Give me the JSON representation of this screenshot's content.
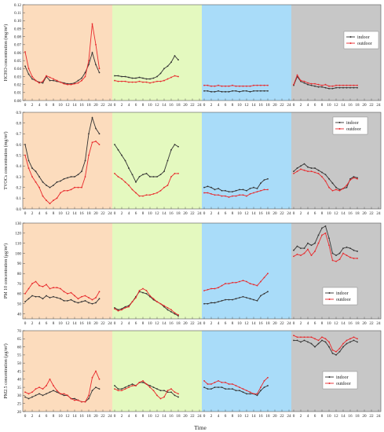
{
  "x_title": "Time",
  "legend_labels": [
    "indoor",
    "outdoor"
  ],
  "colors": {
    "indoor": "#333333",
    "outdoor": "#e8292c",
    "bands": [
      "#fcdcbd",
      "#e4f9bf",
      "#a9dcf9",
      "#c7c7c7"
    ]
  },
  "chart_data": [
    {
      "type": "line",
      "ylabel": "HCHO concentration (mg/m³)",
      "ylim": [
        0,
        0.12
      ],
      "yticks": [
        "0.00",
        "0.01",
        "0.02",
        "0.03",
        "0.04",
        "0.05",
        "0.06",
        "0.07",
        "0.08",
        "0.09",
        "0.10",
        "0.11",
        "0.12"
      ],
      "xticks_by_panel": [
        [
          "0",
          "2",
          "4",
          "6",
          "8",
          "10",
          "12",
          "14",
          "16",
          "18",
          "20",
          "22",
          "24"
        ],
        [
          "0",
          "2",
          "4",
          "6",
          "8",
          "10",
          "12",
          "14",
          "16",
          "18",
          "20",
          "22",
          "24"
        ],
        [
          "0",
          "2",
          "4",
          "6",
          "8",
          "10",
          "12",
          "14",
          "16",
          "18",
          "20",
          "22",
          "24"
        ],
        [
          "0",
          "2",
          "4",
          "6",
          "8",
          "10",
          "12",
          "14",
          "16",
          "18",
          "20",
          "22",
          "24"
        ]
      ],
      "legend_position": "right",
      "series": [
        {
          "name": "indoor",
          "panels": [
            [
              0.043,
              0.033,
              0.027,
              0.025,
              0.023,
              0.022,
              0.03,
              0.025,
              0.025,
              0.024,
              0.023,
              0.022,
              0.021,
              0.021,
              0.022,
              0.025,
              0.028,
              0.035,
              0.045,
              0.06,
              0.045,
              0.035
            ],
            [
              0.031,
              0.031,
              0.03,
              0.03,
              0.029,
              0.028,
              0.028,
              0.029,
              0.028,
              0.027,
              0.027,
              0.028,
              0.03,
              0.034,
              0.04,
              0.043,
              0.048,
              0.056,
              0.051
            ],
            [
              0.012,
              0.012,
              0.011,
              0.011,
              0.012,
              0.011,
              0.011,
              0.011,
              0.012,
              0.012,
              0.011,
              0.012,
              0.012,
              0.011,
              0.012,
              0.012,
              0.012,
              0.012,
              0.012
            ],
            [
              0.019,
              0.03,
              0.024,
              0.022,
              0.02,
              0.019,
              0.018,
              0.017,
              0.017,
              0.016,
              0.015,
              0.015,
              0.016,
              0.016,
              0.016,
              0.016,
              0.016,
              0.016,
              0.016
            ]
          ]
        },
        {
          "name": "outdoor",
          "panels": [
            [
              0.061,
              0.04,
              0.03,
              0.025,
              0.022,
              0.024,
              0.031,
              0.029,
              0.027,
              0.025,
              0.023,
              0.021,
              0.02,
              0.02,
              0.021,
              0.022,
              0.025,
              0.03,
              0.05,
              0.096,
              0.07,
              0.04
            ],
            [
              0.025,
              0.024,
              0.024,
              0.024,
              0.023,
              0.023,
              0.023,
              0.024,
              0.023,
              0.023,
              0.022,
              0.023,
              0.024,
              0.024,
              0.025,
              0.027,
              0.029,
              0.031,
              0.03
            ],
            [
              0.019,
              0.019,
              0.018,
              0.018,
              0.019,
              0.018,
              0.018,
              0.018,
              0.019,
              0.018,
              0.018,
              0.018,
              0.018,
              0.018,
              0.019,
              0.019,
              0.019,
              0.019,
              0.019
            ],
            [
              0.02,
              0.032,
              0.025,
              0.024,
              0.022,
              0.021,
              0.021,
              0.02,
              0.019,
              0.02,
              0.018,
              0.018,
              0.019,
              0.019,
              0.019,
              0.019,
              0.019,
              0.019,
              0.019
            ]
          ]
        }
      ]
    },
    {
      "type": "line",
      "ylabel": "TVOCs concentration (mg/m³)",
      "ylim": [
        0,
        0.9
      ],
      "yticks": [
        "0.0",
        "0.1",
        "0.2",
        "0.3",
        "0.4",
        "0.5",
        "0.6",
        "0.7",
        "0.8",
        "0.9"
      ],
      "xticks_by_panel": [
        [
          "0",
          "2",
          "4",
          "6",
          "8",
          "10",
          "12",
          "14",
          "16",
          "18",
          "20",
          "22",
          "24"
        ],
        [
          "0",
          "2",
          "4",
          "6",
          "8",
          "10",
          "12",
          "14",
          "16",
          "18",
          "20",
          "22",
          "24"
        ],
        [
          "0",
          "2",
          "4",
          "6",
          "8",
          "10",
          "12",
          "14",
          "16",
          "18",
          "20",
          "22",
          "24"
        ],
        [
          "0",
          "2",
          "4",
          "6",
          "8",
          "10",
          "12",
          "14",
          "16",
          "18",
          "20",
          "22",
          "24"
        ]
      ],
      "legend_position": "right",
      "series": [
        {
          "name": "indoor",
          "panels": [
            [
              0.6,
              0.45,
              0.38,
              0.35,
              0.3,
              0.25,
              0.22,
              0.2,
              0.22,
              0.25,
              0.26,
              0.28,
              0.29,
              0.3,
              0.3,
              0.32,
              0.35,
              0.45,
              0.7,
              0.85,
              0.75,
              0.7
            ],
            [
              0.6,
              0.55,
              0.5,
              0.45,
              0.38,
              0.32,
              0.25,
              0.3,
              0.32,
              0.33,
              0.3,
              0.3,
              0.3,
              0.32,
              0.35,
              0.45,
              0.55,
              0.6,
              0.58
            ],
            [
              0.2,
              0.21,
              0.2,
              0.18,
              0.19,
              0.17,
              0.17,
              0.16,
              0.16,
              0.17,
              0.18,
              0.18,
              0.17,
              0.19,
              0.2,
              0.19,
              0.24,
              0.27,
              0.28
            ],
            [
              0.35,
              0.38,
              0.4,
              0.42,
              0.39,
              0.38,
              0.38,
              0.36,
              0.34,
              0.32,
              0.28,
              0.24,
              0.2,
              0.18,
              0.19,
              0.2,
              0.28,
              0.3,
              0.29
            ]
          ]
        },
        {
          "name": "outdoor",
          "panels": [
            [
              0.5,
              0.38,
              0.3,
              0.25,
              0.2,
              0.12,
              0.08,
              0.05,
              0.08,
              0.1,
              0.15,
              0.17,
              0.17,
              0.18,
              0.2,
              0.2,
              0.2,
              0.3,
              0.5,
              0.62,
              0.63,
              0.6
            ],
            [
              0.33,
              0.3,
              0.28,
              0.25,
              0.22,
              0.18,
              0.15,
              0.12,
              0.12,
              0.13,
              0.13,
              0.14,
              0.15,
              0.17,
              0.2,
              0.22,
              0.3,
              0.33,
              0.33
            ],
            [
              0.15,
              0.15,
              0.14,
              0.13,
              0.13,
              0.12,
              0.12,
              0.11,
              0.12,
              0.12,
              0.13,
              0.13,
              0.12,
              0.14,
              0.15,
              0.16,
              0.17,
              0.18,
              0.18
            ],
            [
              0.33,
              0.35,
              0.37,
              0.36,
              0.35,
              0.35,
              0.34,
              0.33,
              0.3,
              0.26,
              0.2,
              0.17,
              0.18,
              0.17,
              0.19,
              0.22,
              0.27,
              0.29,
              0.28
            ]
          ]
        }
      ]
    },
    {
      "type": "line",
      "ylabel": "PM 10  concentration (μg/m³)",
      "ylim": [
        35,
        130
      ],
      "yticks": [
        "40",
        "50",
        "60",
        "70",
        "80",
        "90",
        "100",
        "110",
        "120",
        "130"
      ],
      "xticks_by_panel": [
        [
          "0",
          "2",
          "4",
          "6",
          "8",
          "10",
          "12",
          "14",
          "16",
          "18",
          "20",
          "22",
          "24"
        ],
        [
          "0",
          "2",
          "4",
          "6",
          "8",
          "10",
          "12",
          "14",
          "16",
          "18",
          "20",
          "22",
          "24"
        ],
        [
          "0",
          "2",
          "4",
          "6",
          "8",
          "10",
          "12",
          "14",
          "16",
          "18",
          "20",
          "22",
          "24"
        ],
        [
          "0",
          "2",
          "4",
          "6",
          "8",
          "10",
          "12",
          "14",
          "16",
          "18",
          "20",
          "22",
          "24"
        ]
      ],
      "legend_position": "right",
      "series": [
        {
          "name": "indoor",
          "panels": [
            [
              52,
              55,
              58,
              57,
              57,
              55,
              58,
              56,
              57,
              56,
              55,
              53,
              53,
              54,
              52,
              51,
              52,
              53,
              51,
              50,
              51,
              55
            ],
            [
              46,
              44,
              45,
              47,
              48,
              52,
              57,
              62,
              61,
              60,
              57,
              54,
              52,
              50,
              47,
              44,
              42,
              40,
              38
            ],
            [
              50,
              50,
              51,
              51,
              52,
              53,
              54,
              54,
              54,
              55,
              56,
              57,
              56,
              55,
              54,
              53,
              58,
              60,
              62
            ],
            [
              103,
              107,
              105,
              105,
              110,
              108,
              110,
              118,
              125,
              127,
              115,
              100,
              98,
              100,
              105,
              106,
              105,
              103,
              102
            ]
          ]
        },
        {
          "name": "outdoor",
          "panels": [
            [
              60,
              65,
              70,
              72,
              68,
              67,
              69,
              65,
              66,
              66,
              65,
              62,
              60,
              61,
              58,
              55,
              57,
              58,
              56,
              54,
              56,
              62
            ],
            [
              45,
              43,
              44,
              46,
              47,
              52,
              56,
              63,
              65,
              63,
              58,
              55,
              52,
              50,
              48,
              46,
              44,
              41,
              39
            ],
            [
              63,
              64,
              65,
              65,
              66,
              68,
              70,
              70,
              71,
              71,
              72,
              73,
              72,
              70,
              69,
              68,
              72,
              76,
              80
            ],
            [
              97,
              99,
              98,
              100,
              104,
              98,
              102,
              110,
              118,
              120,
              108,
              93,
              92,
              94,
              100,
              98,
              96,
              95,
              95
            ]
          ]
        }
      ]
    },
    {
      "type": "line",
      "ylabel": "PM2.5 concentration (μg/m³)",
      "ylim": [
        20,
        70
      ],
      "yticks": [
        "20",
        "25",
        "30",
        "35",
        "40",
        "45",
        "50",
        "55",
        "60",
        "65",
        "70"
      ],
      "xticks_by_panel": [
        [
          "0",
          "2",
          "4",
          "6",
          "8",
          "10",
          "12",
          "14",
          "16",
          "18",
          "20",
          "22",
          "24"
        ],
        [
          "0",
          "2",
          "4",
          "6",
          "8",
          "10",
          "12",
          "14",
          "16",
          "18",
          "20",
          "22",
          "24"
        ],
        [
          "0",
          "2",
          "4",
          "6",
          "8",
          "10",
          "12",
          "14",
          "16",
          "18",
          "20",
          "22",
          "24"
        ],
        [
          "0",
          "2",
          "4",
          "6",
          "8",
          "10",
          "12",
          "14",
          "16",
          "18",
          "20",
          "22",
          "24"
        ]
      ],
      "legend_position": "right",
      "series": [
        {
          "name": "indoor",
          "panels": [
            [
              29,
              28,
              29,
              30,
              31,
              30,
              31,
              32,
              33,
              32,
              31,
              30,
              30,
              28,
              28,
              27,
              26,
              26,
              28,
              33,
              35,
              34
            ],
            [
              36,
              34,
              34,
              35,
              36,
              37,
              36,
              38,
              38,
              37,
              36,
              35,
              34,
              33,
              33,
              32,
              32,
              30,
              29
            ],
            [
              35,
              34,
              34,
              35,
              35,
              35,
              34,
              34,
              34,
              33,
              33,
              32,
              31,
              31,
              31,
              30,
              33,
              35,
              36
            ],
            [
              64,
              64,
              63,
              64,
              63,
              62,
              60,
              62,
              64,
              63,
              60,
              56,
              55,
              57,
              60,
              62,
              63,
              64,
              63
            ]
          ]
        },
        {
          "name": "outdoor",
          "panels": [
            [
              32,
              31,
              32,
              34,
              35,
              34,
              36,
              40,
              36,
              33,
              31,
              31,
              30,
              28,
              27,
              27,
              26,
              26,
              30,
              41,
              45,
              40
            ],
            [
              34,
              33,
              33,
              34,
              35,
              36,
              36,
              38,
              39,
              37,
              35,
              33,
              30,
              28,
              29,
              33,
              34,
              32,
              31
            ],
            [
              39,
              37,
              37,
              38,
              39,
              38,
              38,
              37,
              37,
              36,
              35,
              34,
              33,
              32,
              31,
              31,
              35,
              39,
              41
            ],
            [
              67,
              66,
              66,
              66,
              66,
              66,
              65,
              64,
              66,
              65,
              63,
              58,
              57,
              59,
              62,
              64,
              65,
              66,
              65
            ]
          ]
        }
      ]
    }
  ]
}
